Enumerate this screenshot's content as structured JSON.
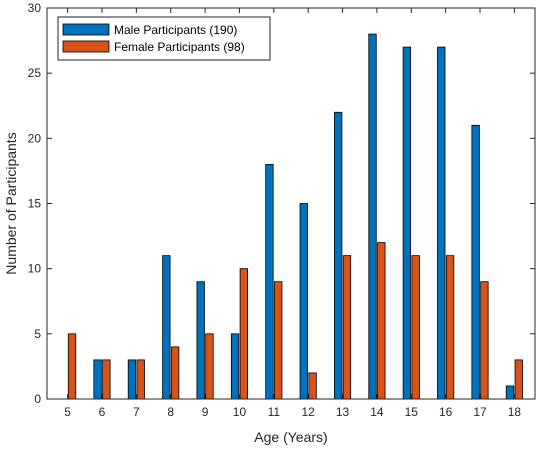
{
  "chart_data": {
    "type": "bar",
    "title": "",
    "xlabel": "Age (Years)",
    "ylabel": "Number of Participants",
    "categories": [
      "5",
      "6",
      "7",
      "8",
      "9",
      "10",
      "11",
      "12",
      "13",
      "14",
      "15",
      "16",
      "17",
      "18"
    ],
    "series": [
      {
        "name": "Male Participants (190)",
        "color": "#0072BD",
        "values": [
          0,
          3,
          3,
          11,
          9,
          5,
          18,
          15,
          22,
          28,
          27,
          27,
          21,
          1
        ]
      },
      {
        "name": "Female Participants (98)",
        "color": "#D95319",
        "values": [
          5,
          3,
          3,
          4,
          5,
          10,
          9,
          2,
          11,
          12,
          11,
          11,
          9,
          3
        ]
      }
    ],
    "ylim": [
      0,
      30
    ],
    "yticks": [
      0,
      5,
      10,
      15,
      20,
      25,
      30
    ],
    "grid": false,
    "legend_position": "top-left"
  }
}
